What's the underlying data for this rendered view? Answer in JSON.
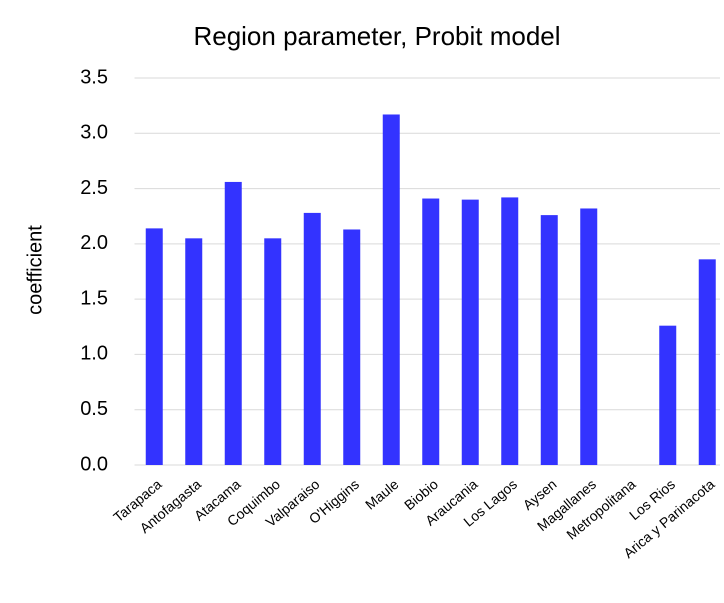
{
  "chart_data": {
    "type": "bar",
    "title": "Region parameter, Probit model",
    "y_label": "coefficient",
    "categories": [
      "Tarapaca",
      "Antofagasta",
      "Atacama",
      "Coquimbo",
      "Valparaiso",
      "O'Higgins",
      "Maule",
      "Biobio",
      "Araucania",
      "Los Lagos",
      "Aysen",
      "Magallanes",
      "Metropolitana",
      "Los Rios",
      "Arica y Parinacota"
    ],
    "values": [
      2.14,
      2.05,
      2.56,
      2.05,
      2.28,
      2.13,
      3.17,
      2.41,
      2.4,
      2.42,
      2.26,
      2.32,
      null,
      1.26,
      1.86
    ],
    "color": "#3333ff",
    "ylim": [
      0,
      3.5
    ],
    "yticks": [
      {
        "value": 0,
        "label": "0.0"
      },
      0.5,
      {
        "value": 1,
        "label": "1.0"
      },
      1.5,
      {
        "value": 2,
        "label": "2.0"
      },
      2.5,
      {
        "value": 3,
        "label": "3.0"
      },
      3.5
    ],
    "grid": true
  }
}
